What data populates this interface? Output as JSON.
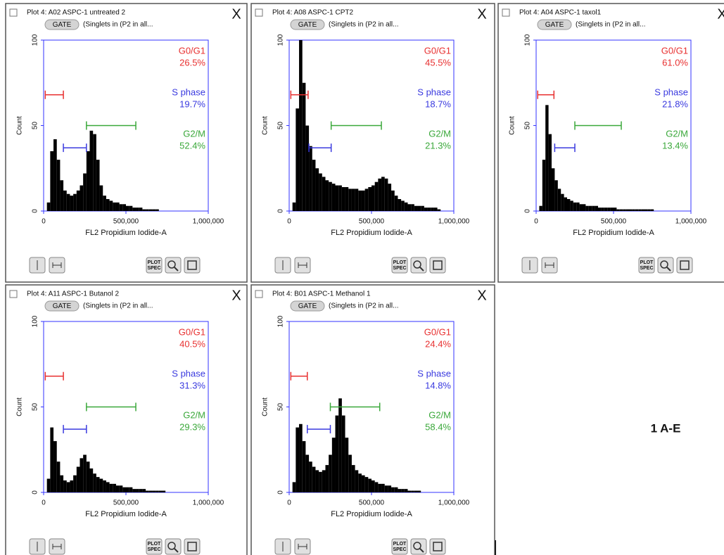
{
  "caption": "1 A-E",
  "plot_spec": [
    "PLOT",
    "SPEC"
  ],
  "gate_button": "GATE",
  "close_button": "X",
  "chart_data": [
    {
      "type": "histogram",
      "title": "Plot 4: A02 ASPC-1 untreated 2",
      "gate": "(Singlets in (P2 in all...",
      "xlabel": "FL2 Propidium Iodide-A",
      "ylabel": "Count",
      "color": "#000000",
      "frame_color": "#3333ff",
      "xlim": [
        0,
        1000000
      ],
      "ylim": [
        0,
        100
      ],
      "xticks": [
        0,
        {
          "value": 500000,
          "label": "500,000"
        },
        {
          "value": 1000000,
          "label": "1,000,000"
        }
      ],
      "yticks": [
        0,
        50,
        100
      ],
      "bins": [
        0,
        20000,
        40000,
        60000,
        80000,
        100000,
        120000,
        140000,
        160000,
        180000,
        200000,
        220000,
        240000,
        260000,
        280000,
        300000,
        320000,
        340000,
        360000,
        380000,
        400000,
        420000,
        440000,
        460000,
        480000,
        500000,
        520000,
        540000,
        560000,
        580000,
        600000,
        620000,
        640000,
        660000,
        680000,
        700000,
        720000,
        740000,
        760000,
        780000,
        800000,
        820000,
        840000,
        860000,
        880000,
        900000,
        920000,
        940000,
        960000,
        980000,
        1000000
      ],
      "values": [
        0,
        5,
        35,
        42,
        30,
        18,
        12,
        10,
        9,
        10,
        12,
        15,
        22,
        35,
        47,
        45,
        30,
        15,
        9,
        7,
        6,
        5,
        5,
        4,
        4,
        3,
        3,
        2,
        2,
        2,
        1,
        1,
        1,
        1,
        1,
        0,
        0,
        0,
        0,
        0,
        0,
        0,
        0,
        0,
        0,
        0,
        0,
        0,
        0,
        0
      ],
      "gates": [
        {
          "name": "G0/G1",
          "value": 26.5,
          "value_label": "26.5%",
          "color": "#e83030",
          "range": [
            10000,
            120000
          ],
          "level": 68
        },
        {
          "name": "S phase",
          "value": 19.7,
          "value_label": "19.7%",
          "color": "#3a3adf",
          "range": [
            120000,
            260000
          ],
          "level": 37
        },
        {
          "name": "G2/M",
          "value": 52.4,
          "value_label": "52.4%",
          "color": "#3aa83a",
          "range": [
            260000,
            560000
          ],
          "level": 50
        }
      ]
    },
    {
      "type": "histogram",
      "title": "Plot 4: A08 ASPC-1 CPT2",
      "gate": "(Singlets in (P2 in all...",
      "xlabel": "FL2 Propidium Iodide-A",
      "ylabel": "Count",
      "color": "#000000",
      "frame_color": "#3333ff",
      "xlim": [
        0,
        1000000
      ],
      "ylim": [
        0,
        100
      ],
      "xticks": [
        0,
        {
          "value": 500000,
          "label": "500,000"
        },
        {
          "value": 1000000,
          "label": "1,000,000"
        }
      ],
      "yticks": [
        0,
        50,
        100
      ],
      "bins": [
        0,
        20000,
        40000,
        60000,
        80000,
        100000,
        120000,
        140000,
        160000,
        180000,
        200000,
        220000,
        240000,
        260000,
        280000,
        300000,
        320000,
        340000,
        360000,
        380000,
        400000,
        420000,
        440000,
        460000,
        480000,
        500000,
        520000,
        540000,
        560000,
        580000,
        600000,
        620000,
        640000,
        660000,
        680000,
        700000,
        720000,
        740000,
        760000,
        780000,
        800000,
        820000,
        840000,
        860000,
        880000,
        900000,
        920000,
        940000,
        960000,
        980000,
        1000000
      ],
      "values": [
        0,
        5,
        60,
        100,
        75,
        50,
        38,
        30,
        25,
        22,
        20,
        18,
        17,
        16,
        15,
        15,
        14,
        14,
        13,
        13,
        13,
        12,
        12,
        13,
        14,
        15,
        17,
        19,
        20,
        19,
        16,
        12,
        9,
        7,
        6,
        5,
        4,
        4,
        3,
        3,
        3,
        2,
        2,
        2,
        2,
        1,
        0,
        0,
        0,
        0
      ],
      "gates": [
        {
          "name": "G0/G1",
          "value": 45.5,
          "value_label": "45.5%",
          "color": "#e83030",
          "range": [
            10000,
            115000
          ],
          "level": 68
        },
        {
          "name": "S phase",
          "value": 18.7,
          "value_label": "18.7%",
          "color": "#3a3adf",
          "range": [
            120000,
            255000
          ],
          "level": 37
        },
        {
          "name": "G2/M",
          "value": 21.3,
          "value_label": "21.3%",
          "color": "#3aa83a",
          "range": [
            255000,
            560000
          ],
          "level": 50
        }
      ]
    },
    {
      "type": "histogram",
      "title": "Plot 4: A04 ASPC-1 taxol1",
      "gate": "(Singlets in (P2 in all...",
      "xlabel": "FL2 Propidium Iodide-A",
      "ylabel": "Count",
      "color": "#000000",
      "frame_color": "#3333ff",
      "xlim": [
        0,
        1000000
      ],
      "ylim": [
        0,
        100
      ],
      "xticks": [
        0,
        {
          "value": 500000,
          "label": "500,000"
        },
        {
          "value": 1000000,
          "label": "1,000,000"
        }
      ],
      "yticks": [
        0,
        50,
        100
      ],
      "bins": [
        0,
        20000,
        40000,
        60000,
        80000,
        100000,
        120000,
        140000,
        160000,
        180000,
        200000,
        220000,
        240000,
        260000,
        280000,
        300000,
        320000,
        340000,
        360000,
        380000,
        400000,
        420000,
        440000,
        460000,
        480000,
        500000,
        520000,
        540000,
        560000,
        580000,
        600000,
        620000,
        640000,
        660000,
        680000,
        700000,
        720000,
        740000,
        760000,
        780000,
        800000,
        820000,
        840000,
        860000,
        880000,
        900000,
        920000,
        940000,
        960000,
        980000,
        1000000
      ],
      "values": [
        0,
        3,
        30,
        62,
        45,
        25,
        18,
        13,
        10,
        8,
        7,
        6,
        5,
        5,
        4,
        4,
        3,
        3,
        3,
        3,
        2,
        2,
        2,
        2,
        2,
        2,
        1,
        1,
        1,
        1,
        1,
        1,
        1,
        1,
        1,
        1,
        1,
        1,
        0,
        0,
        0,
        0,
        0,
        0,
        0,
        0,
        0,
        0,
        0,
        0
      ],
      "gates": [
        {
          "name": "G0/G1",
          "value": 61.0,
          "value_label": "61.0%",
          "color": "#e83030",
          "range": [
            10000,
            115000
          ],
          "level": 68
        },
        {
          "name": "S phase",
          "value": 21.8,
          "value_label": "21.8%",
          "color": "#3a3adf",
          "range": [
            120000,
            250000
          ],
          "level": 37
        },
        {
          "name": "G2/M",
          "value": 13.4,
          "value_label": "13.4%",
          "color": "#3aa83a",
          "range": [
            250000,
            550000
          ],
          "level": 50
        }
      ]
    },
    {
      "type": "histogram",
      "title": "Plot 4: A11 ASPC-1 Butanol 2",
      "gate": "(Singlets in (P2 in all...",
      "xlabel": "FL2 Propidium Iodide-A",
      "ylabel": "Count",
      "color": "#000000",
      "frame_color": "#3333ff",
      "xlim": [
        0,
        1000000
      ],
      "ylim": [
        0,
        100
      ],
      "xticks": [
        0,
        {
          "value": 500000,
          "label": "500,000"
        },
        {
          "value": 1000000,
          "label": "1,000,000"
        }
      ],
      "yticks": [
        0,
        50,
        100
      ],
      "bins": [
        0,
        20000,
        40000,
        60000,
        80000,
        100000,
        120000,
        140000,
        160000,
        180000,
        200000,
        220000,
        240000,
        260000,
        280000,
        300000,
        320000,
        340000,
        360000,
        380000,
        400000,
        420000,
        440000,
        460000,
        480000,
        500000,
        520000,
        540000,
        560000,
        580000,
        600000,
        620000,
        640000,
        660000,
        680000,
        700000,
        720000,
        740000,
        760000,
        780000,
        800000,
        820000,
        840000,
        860000,
        880000,
        900000,
        920000,
        940000,
        960000,
        980000,
        1000000
      ],
      "values": [
        0,
        8,
        38,
        30,
        18,
        10,
        7,
        6,
        7,
        10,
        15,
        20,
        22,
        18,
        14,
        11,
        9,
        8,
        7,
        6,
        5,
        5,
        4,
        4,
        3,
        3,
        3,
        2,
        2,
        2,
        2,
        1,
        1,
        1,
        1,
        1,
        1,
        0,
        0,
        0,
        0,
        0,
        0,
        0,
        0,
        0,
        0,
        0,
        0,
        0
      ],
      "gates": [
        {
          "name": "G0/G1",
          "value": 40.5,
          "value_label": "40.5%",
          "color": "#e83030",
          "range": [
            10000,
            120000
          ],
          "level": 68
        },
        {
          "name": "S phase",
          "value": 31.3,
          "value_label": "31.3%",
          "color": "#3a3adf",
          "range": [
            120000,
            260000
          ],
          "level": 37
        },
        {
          "name": "G2/M",
          "value": 29.3,
          "value_label": "29.3%",
          "color": "#3aa83a",
          "range": [
            260000,
            560000
          ],
          "level": 50
        }
      ]
    },
    {
      "type": "histogram",
      "title": "Plot 4: B01 ASPC-1 Methanol 1",
      "gate": "(Singlets in (P2 in all...",
      "xlabel": "FL2 Propidium Iodide-A",
      "ylabel": "Count",
      "color": "#000000",
      "frame_color": "#3333ff",
      "xlim": [
        0,
        1000000
      ],
      "ylim": [
        0,
        100
      ],
      "xticks": [
        0,
        {
          "value": 500000,
          "label": "500,000"
        },
        {
          "value": 1000000,
          "label": "1,000,000"
        }
      ],
      "yticks": [
        0,
        50,
        100
      ],
      "bins": [
        0,
        20000,
        40000,
        60000,
        80000,
        100000,
        120000,
        140000,
        160000,
        180000,
        200000,
        220000,
        240000,
        260000,
        280000,
        300000,
        320000,
        340000,
        360000,
        380000,
        400000,
        420000,
        440000,
        460000,
        480000,
        500000,
        520000,
        540000,
        560000,
        580000,
        600000,
        620000,
        640000,
        660000,
        680000,
        700000,
        720000,
        740000,
        760000,
        780000,
        800000,
        820000,
        840000,
        860000,
        880000,
        900000,
        920000,
        940000,
        960000,
        980000,
        1000000
      ],
      "values": [
        0,
        6,
        38,
        40,
        30,
        22,
        18,
        15,
        13,
        12,
        13,
        16,
        22,
        32,
        45,
        55,
        45,
        32,
        22,
        16,
        13,
        11,
        10,
        9,
        8,
        7,
        6,
        5,
        5,
        4,
        4,
        3,
        3,
        2,
        2,
        2,
        1,
        1,
        1,
        1,
        0,
        0,
        0,
        0,
        0,
        0,
        0,
        0,
        0,
        0
      ],
      "gates": [
        {
          "name": "G0/G1",
          "value": 24.4,
          "value_label": "24.4%",
          "color": "#e83030",
          "range": [
            10000,
            110000
          ],
          "level": 68
        },
        {
          "name": "S phase",
          "value": 14.8,
          "value_label": "14.8%",
          "color": "#3a3adf",
          "range": [
            110000,
            250000
          ],
          "level": 37
        },
        {
          "name": "G2/M",
          "value": 58.4,
          "value_label": "58.4%",
          "color": "#3aa83a",
          "range": [
            250000,
            550000
          ],
          "level": 50
        }
      ]
    }
  ]
}
